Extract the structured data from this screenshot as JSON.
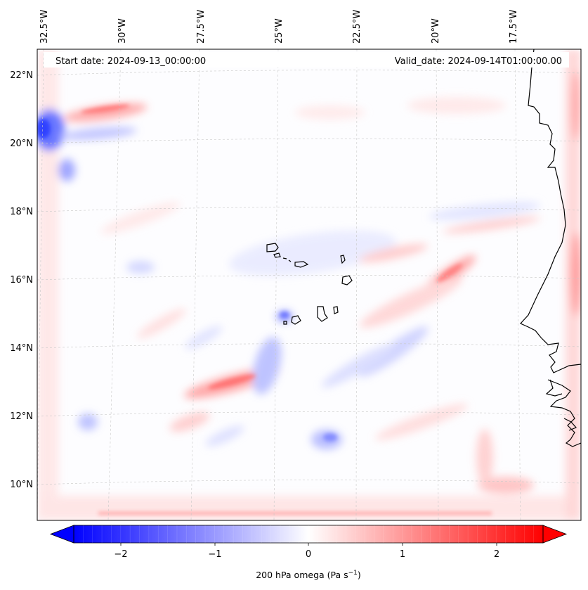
{
  "header": {
    "start_date": "Start date: 2024-09-13_00:00:00",
    "valid_date": "Valid_date: 2024-09-14T01:00:00.00"
  },
  "map": {
    "lon_labels": [
      "32.5°W",
      "30°W",
      "27.5°W",
      "25°W",
      "22.5°W",
      "20°W",
      "17.5°W"
    ],
    "lat_labels": [
      "22°N",
      "20°N",
      "18°N",
      "16°N",
      "14°N",
      "12°N",
      "10°N"
    ],
    "gridlines": true,
    "colors": {
      "negative": "#0000ff",
      "zero": "#ffffff",
      "positive": "#ff0000",
      "coastline": "#000000",
      "gridline": "#bbbbbb"
    }
  },
  "colorbar": {
    "tick_labels": [
      "−2",
      "−1",
      "0",
      "1",
      "2"
    ],
    "label_prefix": "200 hPa omega (Pa s",
    "label_exp": "−1",
    "label_suffix": ")",
    "range": [
      -2.7,
      2.7
    ]
  }
}
